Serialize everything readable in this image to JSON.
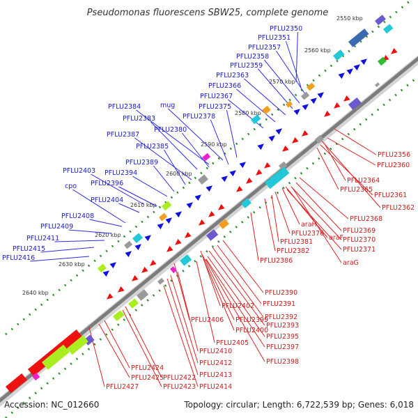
{
  "title": "Pseudomonas fluorescens SBW25, complete genome",
  "footer": {
    "accession": "Accession: NC_012660",
    "summary": "Topology: circular; Length: 6,722,539 bp; Genes: 6,018"
  },
  "kbp_ticks": [
    "2550 kbp",
    "2560 kbp",
    "2570 kbp",
    "2580 kbp",
    "2590 kbp",
    "2600 kbp",
    "2610 kbp",
    "2620 kbp",
    "2630 kbp",
    "2640 kbp"
  ],
  "forward_labels": [
    "PFLU2350",
    "PFLU2351",
    "PFLU2357",
    "PFLU2358",
    "PFLU2359",
    "PFLU2363",
    "PFLU2366",
    "PFLU2367",
    "PFLU2384",
    "mug",
    "PFLU2375",
    "PFLU2383",
    "PFLU2378",
    "PFLU2380",
    "PFLU2387",
    "PFLU2385",
    "PFLU2389",
    "PFLU2394",
    "PFLU2403",
    "PFLU2396",
    "cpo",
    "PFLU2404",
    "PFLU2408",
    "PFLU2409",
    "PFLU2411",
    "PFLU2415",
    "PFLU2416"
  ],
  "reverse_labels": [
    "PFLU2356",
    "PFLU2360",
    "PFLU2364",
    "PFLU2365",
    "PFLU2361",
    "PFLU2362",
    "PFLU2368",
    "araH",
    "PFLU2376",
    "PFLU2369",
    "araF",
    "PFLU2370",
    "PFLU2381",
    "PFLU2371",
    "PFLU2382",
    "araG",
    "PFLU2386",
    "PFLU2390",
    "PFLU2391",
    "PFLU2402",
    "PFLU2392",
    "PFLU2399",
    "PFLU2393",
    "PFLU2406",
    "PFLU2400",
    "PFLU2395",
    "PFLU2405",
    "PFLU2397",
    "PFLU2410",
    "PFLU2398",
    "PFLU2412",
    "PFLU2424",
    "PFLU2413",
    "PFLU2425",
    "PFLU2422",
    "PFLU2427",
    "PFLU2423",
    "PFLU2414"
  ],
  "colors": {
    "forward_gene": "#1010e0",
    "reverse_gene": "#ee1111",
    "backbone": "#888888",
    "tick_green": "#2a8a2a",
    "cyan": "#22c8d8",
    "orange": "#f0a020",
    "grey": "#9a9a9a",
    "lime": "#aaee22",
    "magenta": "#ee22cc",
    "purple": "#6a5acd"
  }
}
